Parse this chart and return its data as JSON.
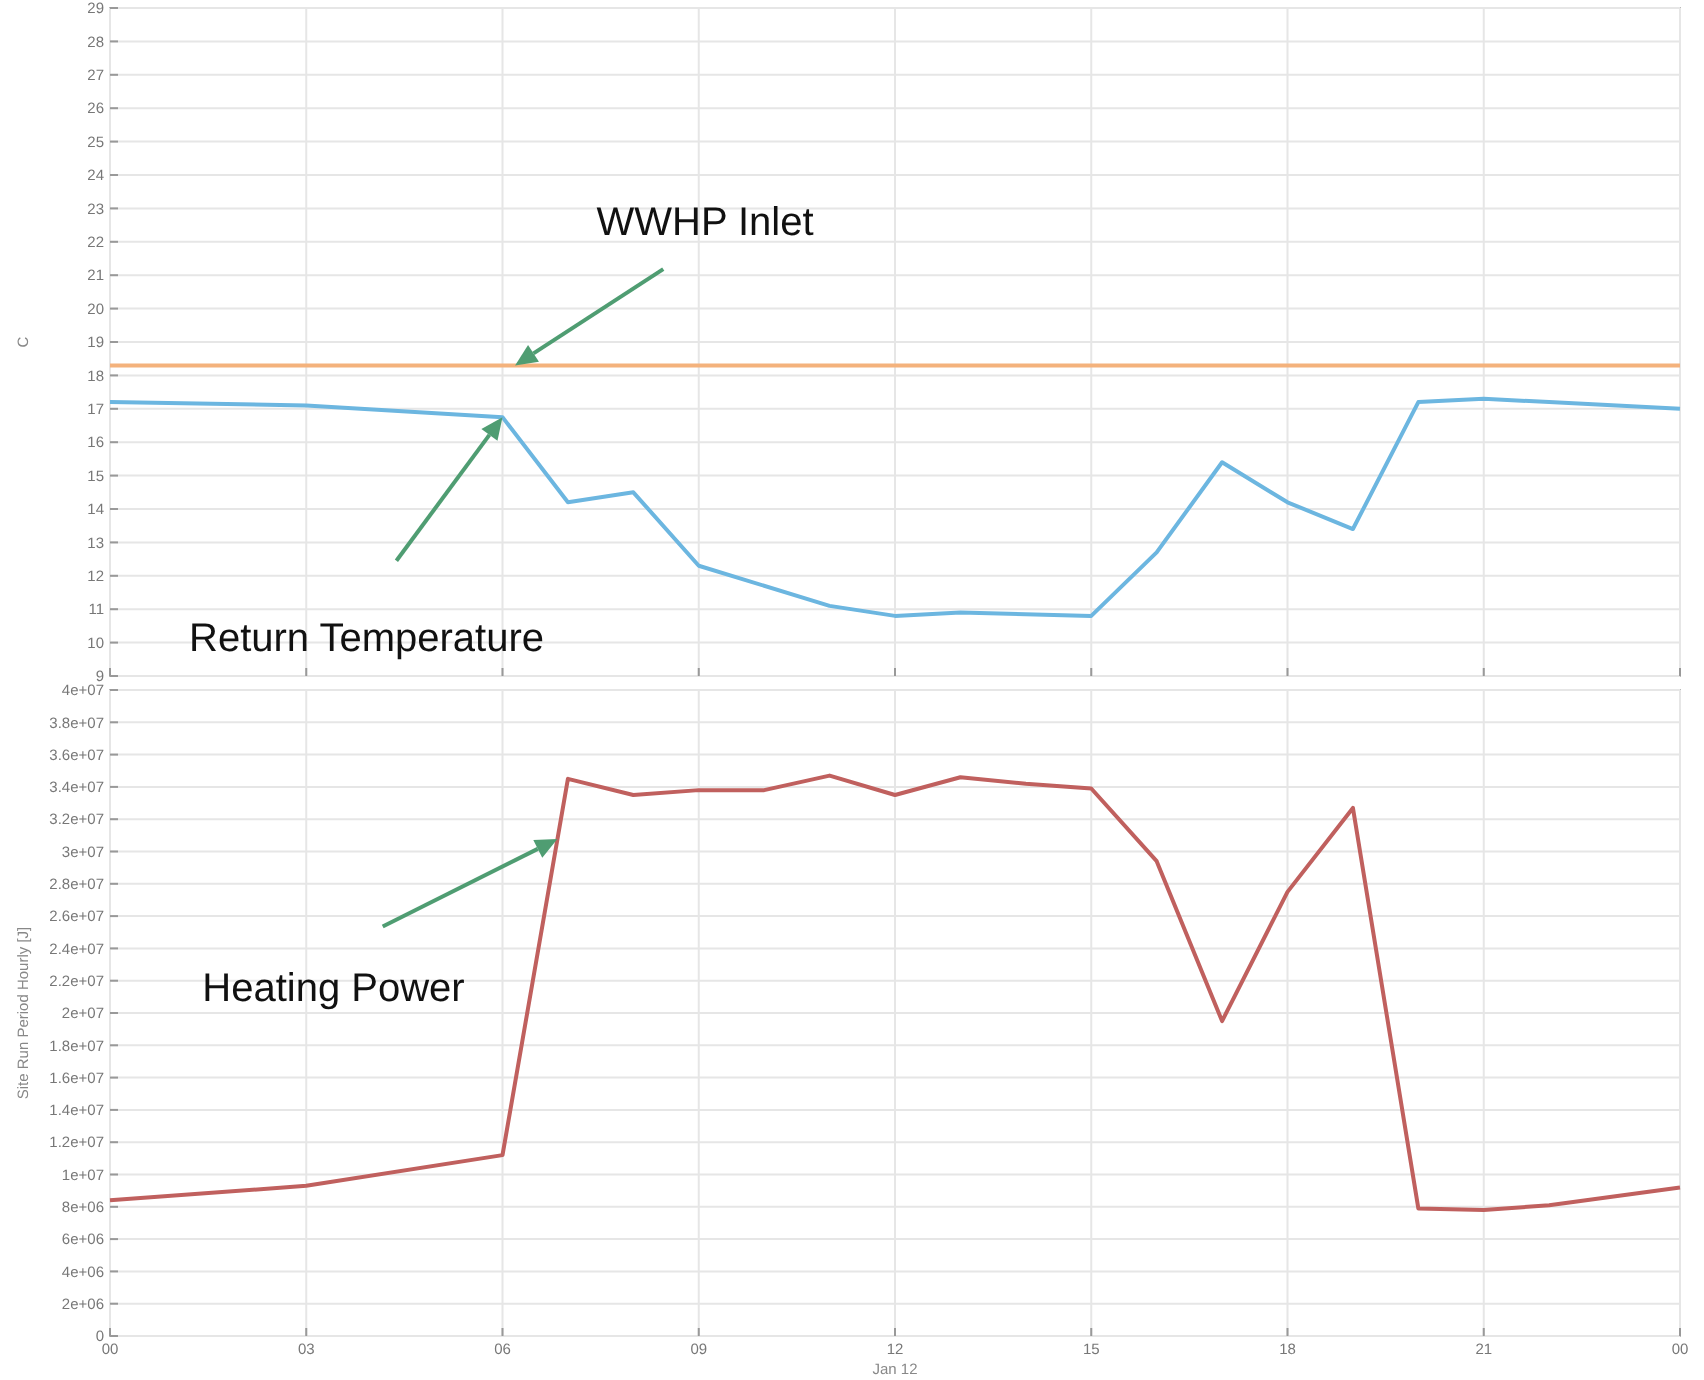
{
  "chart_data": [
    {
      "type": "line",
      "ylabel": "C",
      "xlim": [
        0,
        24
      ],
      "xticks": [
        {
          "value": 0,
          "label": null
        },
        {
          "value": 3,
          "label": null
        },
        {
          "value": 6,
          "label": null
        },
        {
          "value": 9,
          "label": null
        },
        {
          "value": 12,
          "label": null
        },
        {
          "value": 15,
          "label": null
        },
        {
          "value": 18,
          "label": null
        },
        {
          "value": 21,
          "label": null
        },
        {
          "value": 24,
          "label": null
        }
      ],
      "ylim": [
        9,
        29
      ],
      "yticks": [
        9,
        10,
        11,
        12,
        13,
        14,
        15,
        16,
        17,
        18,
        19,
        20,
        21,
        22,
        23,
        24,
        25,
        26,
        27,
        28,
        29
      ],
      "grid": true,
      "tick_labels": "y",
      "marker": "none",
      "line_style": "solid",
      "series": [
        {
          "name": "WWHP Inlet",
          "color": "#f4b27c",
          "x": [
            0,
            24
          ],
          "values": [
            18.3,
            18.3
          ]
        },
        {
          "name": "Return Temperature",
          "color": "#6cb6e0",
          "x": [
            0,
            3,
            6,
            7,
            8,
            9,
            11,
            12,
            13,
            15,
            16,
            17,
            18,
            19,
            20,
            21,
            22,
            24
          ],
          "values": [
            17.2,
            17.1,
            16.75,
            14.2,
            14.5,
            12.3,
            11.1,
            10.8,
            10.9,
            10.8,
            12.7,
            15.4,
            14.2,
            13.4,
            17.2,
            17.3,
            17.2,
            17.0
          ]
        }
      ]
    },
    {
      "type": "line",
      "xlabel": "Jan 12",
      "ylabel": "Site Run Period Hourly [J]",
      "xlim": [
        0,
        24
      ],
      "xticks": [
        {
          "value": 0,
          "label": "00"
        },
        {
          "value": 3,
          "label": "03"
        },
        {
          "value": 6,
          "label": "06"
        },
        {
          "value": 9,
          "label": "09"
        },
        {
          "value": 12,
          "label": "12"
        },
        {
          "value": 15,
          "label": "15"
        },
        {
          "value": 18,
          "label": "18"
        },
        {
          "value": 21,
          "label": "21"
        },
        {
          "value": 24,
          "label": "00"
        }
      ],
      "ylim": [
        0,
        40000000
      ],
      "yticks": [
        0,
        {
          "value": 2000000,
          "label": "2e+06"
        },
        {
          "value": 4000000,
          "label": "4e+06"
        },
        {
          "value": 6000000,
          "label": "6e+06"
        },
        {
          "value": 8000000,
          "label": "8e+06"
        },
        {
          "value": 10000000,
          "label": "1e+07"
        },
        {
          "value": 12000000,
          "label": "1.2e+07"
        },
        {
          "value": 14000000,
          "label": "1.4e+07"
        },
        {
          "value": 16000000,
          "label": "1.6e+07"
        },
        {
          "value": 18000000,
          "label": "1.8e+07"
        },
        {
          "value": 20000000,
          "label": "2e+07"
        },
        {
          "value": 22000000,
          "label": "2.2e+07"
        },
        {
          "value": 24000000,
          "label": "2.4e+07"
        },
        {
          "value": 26000000,
          "label": "2.6e+07"
        },
        {
          "value": 28000000,
          "label": "2.8e+07"
        },
        {
          "value": 30000000,
          "label": "3e+07"
        },
        {
          "value": 32000000,
          "label": "3.2e+07"
        },
        {
          "value": 34000000,
          "label": "3.4e+07"
        },
        {
          "value": 36000000,
          "label": "3.6e+07"
        },
        {
          "value": 38000000,
          "label": "3.8e+07"
        },
        {
          "value": 40000000,
          "label": "4e+07"
        }
      ],
      "grid": true,
      "marker": "none",
      "line_style": "solid",
      "series": [
        {
          "name": "Heating Power",
          "color": "#c0605e",
          "x": [
            0,
            3,
            6,
            7,
            8,
            9,
            10,
            11,
            12,
            13,
            14,
            15,
            16,
            17,
            18,
            19,
            20,
            21,
            22,
            24
          ],
          "values": [
            8400000,
            9300000,
            11200000,
            34500000,
            33500000,
            33800000,
            33800000,
            34700000,
            33500000,
            34600000,
            34200000,
            33900000,
            29400000,
            19500000,
            27500000,
            32700000,
            7900000,
            7800000,
            8100000,
            9200000
          ]
        }
      ]
    }
  ]
}
